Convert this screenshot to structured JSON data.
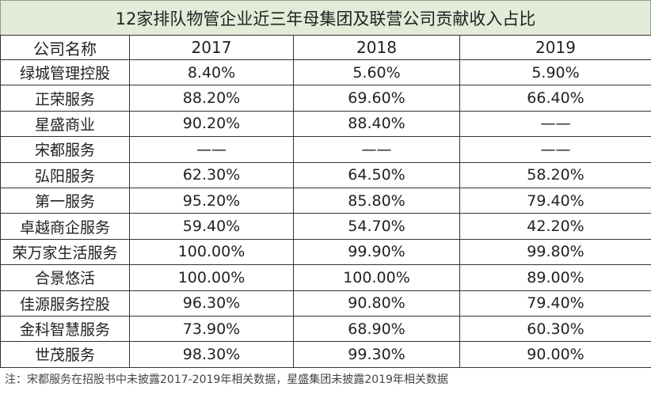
{
  "title": "12家排队物管企业近三年母集团及联营公司贡献收入占比",
  "columns": [
    "公司名称",
    "2017",
    "2018",
    "2019"
  ],
  "rows": [
    [
      "绿城管理控股",
      "8.40%",
      "5.60%",
      "5.90%"
    ],
    [
      "正荣服务",
      "88.20%",
      "69.60%",
      "66.40%"
    ],
    [
      "星盛商业",
      "90.20%",
      "88.40%",
      "——"
    ],
    [
      "宋都服务",
      "——",
      "——",
      "——"
    ],
    [
      "弘阳服务",
      "62.30%",
      "64.50%",
      "58.20%"
    ],
    [
      "第一服务",
      "95.20%",
      "85.80%",
      "79.40%"
    ],
    [
      "卓越商企服务",
      "59.40%",
      "54.70%",
      "42.20%"
    ],
    [
      "荣万家生活服务",
      "100.00%",
      "99.90%",
      "99.80%"
    ],
    [
      "合景悠活",
      "100.00%",
      "100.00%",
      "89.00%"
    ],
    [
      "佳源服务控股",
      "96.30%",
      "90.80%",
      "79.40%"
    ],
    [
      "金科智慧服务",
      "73.90%",
      "68.90%",
      "60.30%"
    ],
    [
      "世茂服务",
      "98.30%",
      "99.30%",
      "90.00%"
    ]
  ],
  "note": "注：宋都服务在招股书中未披露2017-2019年相关数据，星盛集团未披露2019年相关数据",
  "colors": {
    "title_bg": "#e2ecd9",
    "border": "#333333"
  }
}
